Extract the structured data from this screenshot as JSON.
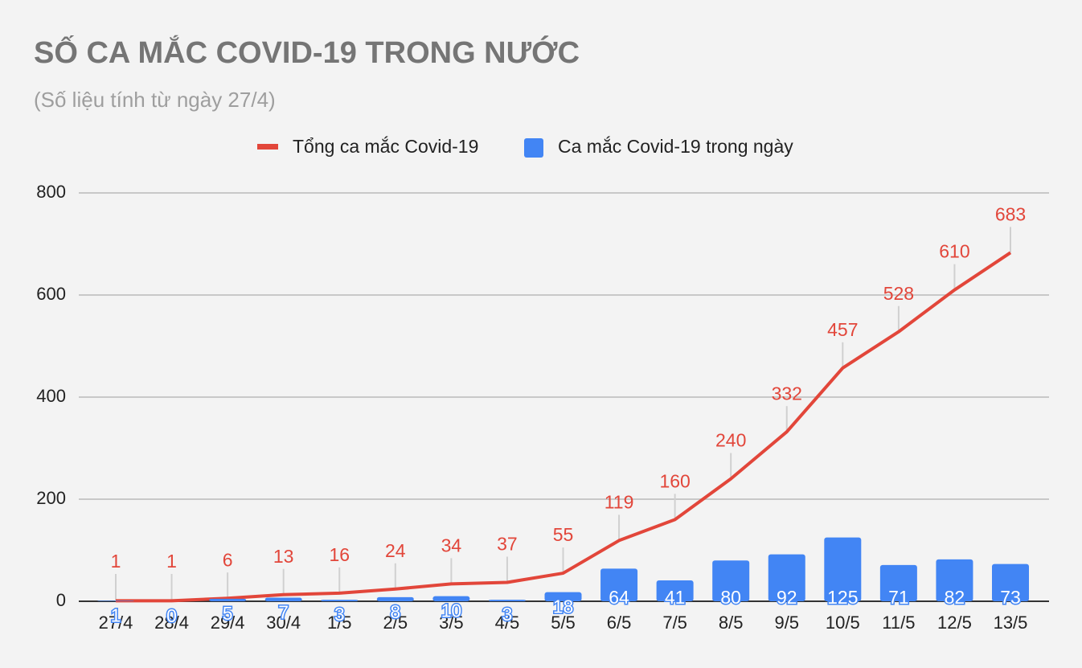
{
  "chart_data": {
    "type": "combo",
    "title": "SỐ CA MẮC COVID-19 TRONG NƯỚC",
    "subtitle": "(Số liệu tính từ ngày 27/4)",
    "categories": [
      "27/4",
      "28/4",
      "29/4",
      "30/4",
      "1/5",
      "2/5",
      "3/5",
      "4/5",
      "5/5",
      "6/5",
      "7/5",
      "8/5",
      "9/5",
      "10/5",
      "11/5",
      "12/5",
      "13/5"
    ],
    "series": [
      {
        "name": "Tổng ca mắc Covid-19",
        "type": "line",
        "color": "#e2463a",
        "values": [
          1,
          1,
          6,
          13,
          16,
          24,
          34,
          37,
          55,
          119,
          160,
          240,
          332,
          457,
          528,
          610,
          683
        ]
      },
      {
        "name": "Ca mắc Covid-19 trong ngày",
        "type": "bar",
        "color": "#4285f4",
        "values": [
          1,
          0,
          5,
          7,
          3,
          8,
          10,
          3,
          18,
          64,
          41,
          80,
          92,
          125,
          71,
          82,
          73
        ]
      }
    ],
    "ylim": [
      0,
      800
    ],
    "yticks": [
      0,
      200,
      400,
      600,
      800
    ],
    "grid": true
  }
}
